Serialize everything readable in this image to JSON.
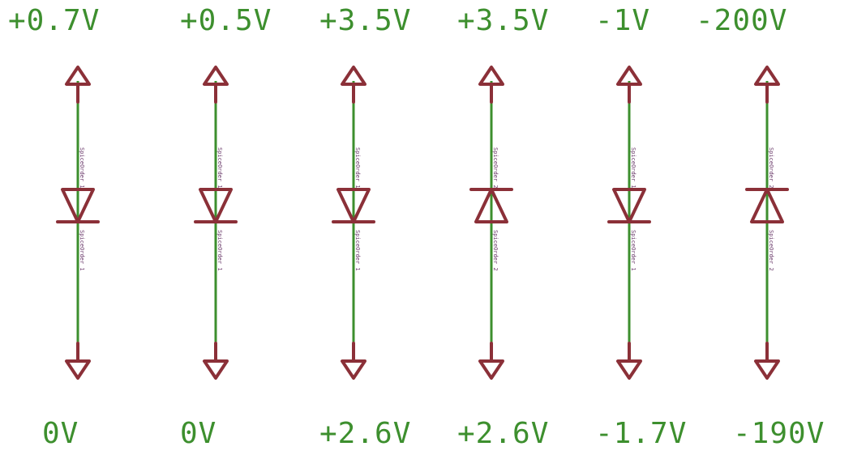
{
  "circuits": [
    {
      "top_label": "+0.7V",
      "bottom_label": "0V",
      "orientation": "down",
      "part": "SpiceOrder 1"
    },
    {
      "top_label": "+0.5V",
      "bottom_label": "0V",
      "orientation": "down",
      "part": "SpiceOrder 1"
    },
    {
      "top_label": "+3.5V",
      "bottom_label": "+2.6V",
      "orientation": "down",
      "part": "SpiceOrder 1"
    },
    {
      "top_label": "+3.5V",
      "bottom_label": "+2.6V",
      "orientation": "up",
      "part": "SpiceOrder 2"
    },
    {
      "top_label": "-1V",
      "bottom_label": "-1.7V",
      "orientation": "down",
      "part": "SpiceOrder 1"
    },
    {
      "top_label": "-200V",
      "bottom_label": "-190V",
      "orientation": "up",
      "part": "SpiceOrder 2"
    }
  ],
  "colors": {
    "wire": "#3d8f2e",
    "symbol": "#8b3038",
    "label": "#3d8f2e"
  }
}
